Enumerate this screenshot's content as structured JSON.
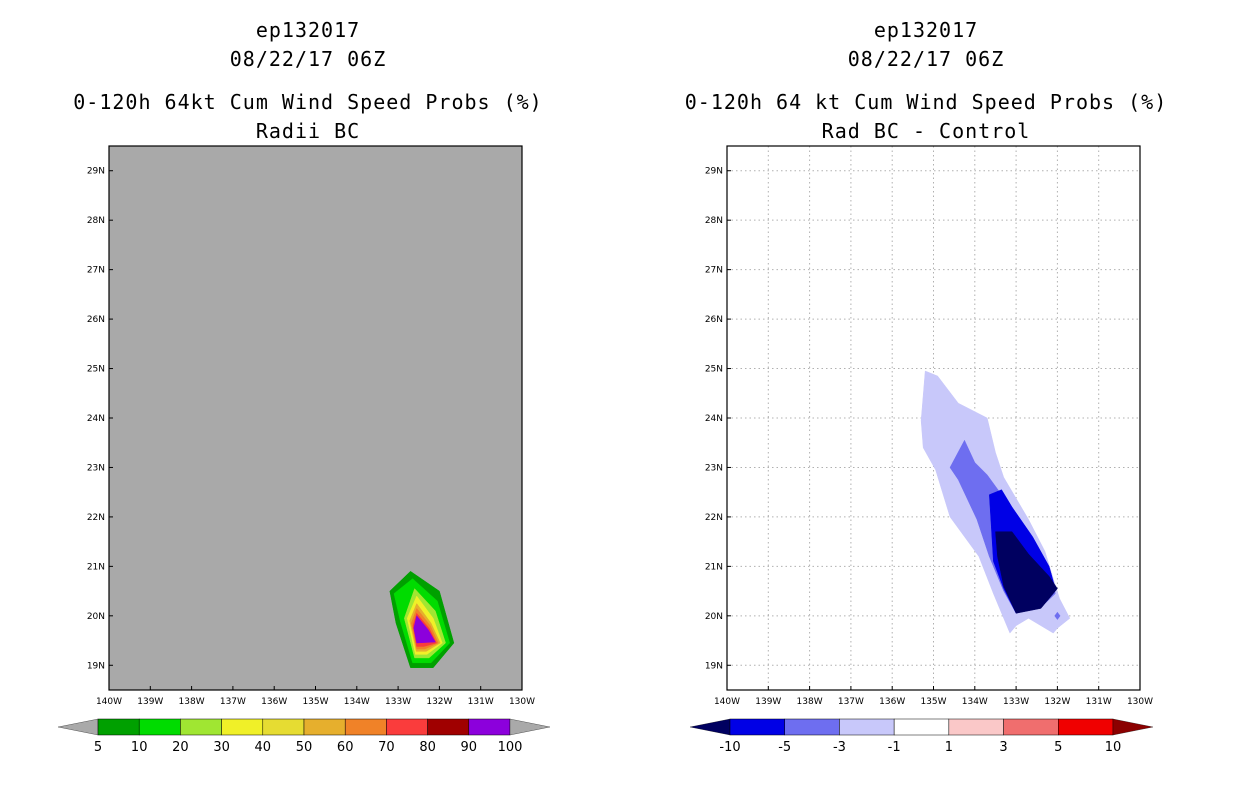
{
  "left": {
    "header": {
      "storm_id": "ep132017",
      "datetime": "08/22/17 06Z",
      "title": "0-120h 64kt Cum Wind Speed Probs (%)",
      "subtitle": "Radii BC"
    }
  },
  "right": {
    "header": {
      "storm_id": "ep132017",
      "datetime": "08/22/17 06Z",
      "title": "0-120h 64 kt Cum Wind Speed Probs (%)",
      "subtitle": "Rad BC - Control"
    }
  },
  "chart_data": [
    {
      "type": "heatmap",
      "title": "0-120h 64kt Cum Wind Speed Probs (%)",
      "subtitle": "Radii BC",
      "x_ticks": [
        "140W",
        "139W",
        "138W",
        "137W",
        "136W",
        "135W",
        "134W",
        "133W",
        "132W",
        "131W",
        "130W"
      ],
      "y_ticks": [
        "19N",
        "20N",
        "21N",
        "22N",
        "23N",
        "24N",
        "25N",
        "26N",
        "27N",
        "28N",
        "29N"
      ],
      "xlim": [
        -140,
        -130
      ],
      "ylim": [
        18.5,
        29.5
      ],
      "grid": false,
      "background_color": "#a9a9a9",
      "colorbar": {
        "labels": [
          "5",
          "10",
          "20",
          "30",
          "40",
          "50",
          "60",
          "70",
          "80",
          "90",
          "100"
        ],
        "colors": [
          "#00a000",
          "#00dc00",
          "#a0e632",
          "#f0f028",
          "#e6dc32",
          "#e6af2d",
          "#f08228",
          "#fa3c3c",
          "#a00000",
          "#8c00dc"
        ],
        "end_color": "#a9a9a9"
      },
      "contours": [
        {
          "level": 5,
          "color": "#00a000",
          "points": [
            [
              -132.7,
              20.9
            ],
            [
              -132.0,
              20.5
            ],
            [
              -131.65,
              19.45
            ],
            [
              -132.15,
              18.95
            ],
            [
              -132.7,
              18.95
            ],
            [
              -133.05,
              19.85
            ],
            [
              -133.2,
              20.5
            ]
          ]
        },
        {
          "level": 10,
          "color": "#00dc00",
          "points": [
            [
              -132.65,
              20.75
            ],
            [
              -132.05,
              20.3
            ],
            [
              -131.75,
              19.45
            ],
            [
              -132.2,
              19.05
            ],
            [
              -132.65,
              19.05
            ],
            [
              -132.95,
              19.9
            ],
            [
              -133.1,
              20.45
            ]
          ]
        },
        {
          "level": 20,
          "color": "#a0e632",
          "points": [
            [
              -132.6,
              20.55
            ],
            [
              -132.1,
              20.1
            ],
            [
              -131.85,
              19.45
            ],
            [
              -132.25,
              19.15
            ],
            [
              -132.6,
              19.15
            ],
            [
              -132.85,
              19.95
            ]
          ]
        },
        {
          "level": 30,
          "color": "#f0f028",
          "points": [
            [
              -132.55,
              20.4
            ],
            [
              -132.15,
              19.95
            ],
            [
              -131.93,
              19.45
            ],
            [
              -132.3,
              19.22
            ],
            [
              -132.58,
              19.22
            ],
            [
              -132.78,
              19.95
            ]
          ]
        },
        {
          "level": 50,
          "color": "#e6af2d",
          "points": [
            [
              -132.55,
              20.25
            ],
            [
              -132.2,
              19.85
            ],
            [
              -131.98,
              19.45
            ],
            [
              -132.32,
              19.28
            ],
            [
              -132.56,
              19.28
            ],
            [
              -132.72,
              19.9
            ]
          ]
        },
        {
          "level": 70,
          "color": "#f08228",
          "points": [
            [
              -132.55,
              20.15
            ],
            [
              -132.22,
              19.8
            ],
            [
              -132.03,
              19.45
            ],
            [
              -132.35,
              19.33
            ],
            [
              -132.55,
              19.33
            ],
            [
              -132.68,
              19.85
            ]
          ]
        },
        {
          "level": 80,
          "color": "#fa3c3c",
          "points": [
            [
              -132.55,
              20.05
            ],
            [
              -132.25,
              19.75
            ],
            [
              -132.07,
              19.45
            ],
            [
              -132.38,
              19.38
            ],
            [
              -132.55,
              19.38
            ],
            [
              -132.64,
              19.8
            ]
          ]
        },
        {
          "level": 90,
          "color": "#8c00dc",
          "points": [
            [
              -132.55,
              20.0
            ],
            [
              -132.27,
              19.72
            ],
            [
              -132.1,
              19.47
            ],
            [
              -132.55,
              19.45
            ],
            [
              -132.62,
              19.75
            ]
          ]
        }
      ]
    },
    {
      "type": "heatmap",
      "title": "0-120h 64 kt Cum Wind Speed Probs (%)",
      "subtitle": "Rad BC - Control",
      "x_ticks": [
        "140W",
        "139W",
        "138W",
        "137W",
        "136W",
        "135W",
        "134W",
        "133W",
        "132W",
        "131W",
        "130W"
      ],
      "y_ticks": [
        "19N",
        "20N",
        "21N",
        "22N",
        "23N",
        "24N",
        "25N",
        "26N",
        "27N",
        "28N",
        "29N"
      ],
      "xlim": [
        -140,
        -130
      ],
      "ylim": [
        18.5,
        29.5
      ],
      "grid": true,
      "background_color": "#ffffff",
      "colorbar": {
        "labels": [
          "-10",
          "-5",
          "-3",
          "-1",
          "1",
          "3",
          "5",
          "10"
        ],
        "colors": [
          "#0000e6",
          "#6e6ef0",
          "#c8c8fa",
          "#ffffff",
          "#fac8c8",
          "#f06e6e",
          "#f00000"
        ],
        "left_end_color": "#000060",
        "right_end_color": "#8b0000"
      },
      "contours": [
        {
          "level": -1,
          "color": "#c8c8fa",
          "points": [
            [
              -135.2,
              24.95
            ],
            [
              -134.9,
              24.85
            ],
            [
              -134.4,
              24.3
            ],
            [
              -133.7,
              24.0
            ],
            [
              -133.5,
              23.3
            ],
            [
              -133.3,
              22.8
            ],
            [
              -132.7,
              21.95
            ],
            [
              -132.3,
              21.3
            ],
            [
              -132.1,
              20.75
            ],
            [
              -131.95,
              20.35
            ],
            [
              -131.7,
              19.95
            ],
            [
              -132.0,
              19.75
            ],
            [
              -132.1,
              19.65
            ],
            [
              -132.7,
              19.95
            ],
            [
              -133.0,
              19.8
            ],
            [
              -133.15,
              19.65
            ],
            [
              -133.3,
              19.95
            ],
            [
              -133.55,
              20.45
            ],
            [
              -133.9,
              21.2
            ],
            [
              -134.6,
              22.0
            ],
            [
              -134.95,
              22.95
            ],
            [
              -135.25,
              23.4
            ],
            [
              -135.3,
              23.95
            ]
          ]
        },
        {
          "level": -3,
          "color": "#6e6ef0",
          "points": [
            [
              -134.25,
              23.55
            ],
            [
              -134.0,
              23.1
            ],
            [
              -133.7,
              22.85
            ],
            [
              -133.35,
              22.45
            ],
            [
              -133.0,
              21.95
            ],
            [
              -132.5,
              21.4
            ],
            [
              -132.15,
              20.85
            ],
            [
              -132.05,
              20.45
            ],
            [
              -132.3,
              20.25
            ],
            [
              -133.0,
              20.05
            ],
            [
              -133.3,
              20.5
            ],
            [
              -133.65,
              21.2
            ],
            [
              -133.95,
              21.95
            ],
            [
              -134.4,
              22.75
            ],
            [
              -134.6,
              23.0
            ]
          ]
        },
        {
          "level": -5,
          "color": "#0000e6",
          "points": [
            [
              -133.35,
              22.55
            ],
            [
              -133.1,
              22.2
            ],
            [
              -132.6,
              21.6
            ],
            [
              -132.2,
              21.0
            ],
            [
              -132.05,
              20.55
            ],
            [
              -132.35,
              20.25
            ],
            [
              -133.0,
              20.05
            ],
            [
              -133.3,
              20.55
            ],
            [
              -133.55,
              21.1
            ],
            [
              -133.6,
              21.8
            ],
            [
              -133.65,
              22.45
            ]
          ]
        },
        {
          "level": -10,
          "color": "#000060",
          "points": [
            [
              -133.5,
              21.7
            ],
            [
              -133.1,
              21.7
            ],
            [
              -132.7,
              21.25
            ],
            [
              -132.2,
              20.8
            ],
            [
              -132.0,
              20.55
            ],
            [
              -132.4,
              20.15
            ],
            [
              -133.0,
              20.05
            ],
            [
              -133.3,
              20.6
            ],
            [
              -133.45,
              21.2
            ]
          ]
        }
      ],
      "markers": [
        {
          "x": -132.0,
          "y": 20.0,
          "color": "#6e6ef0"
        }
      ]
    }
  ]
}
